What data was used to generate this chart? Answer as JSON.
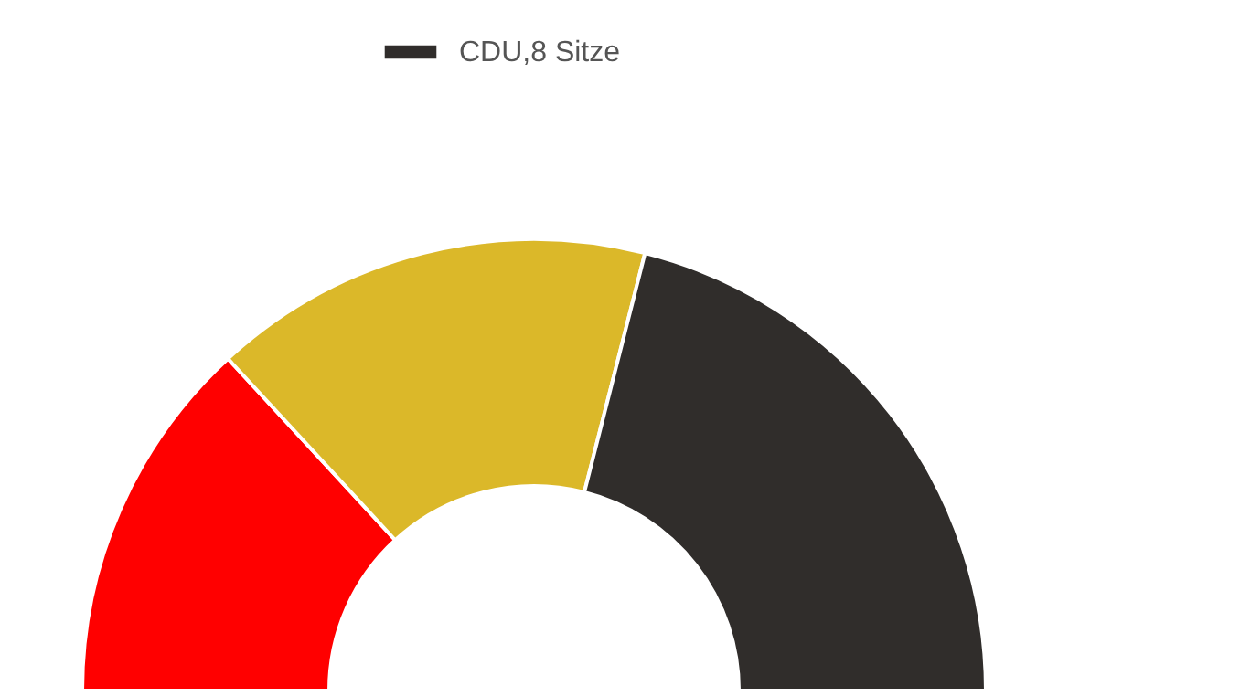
{
  "chart_data": {
    "type": "donut",
    "categories": [
      null,
      null,
      "CDU,8 Sitze"
    ],
    "values": [
      26.3,
      31.6,
      42.1
    ],
    "colors": [
      "#ff0000",
      "#dbb829",
      "#302d2b"
    ],
    "legend": "top"
  }
}
